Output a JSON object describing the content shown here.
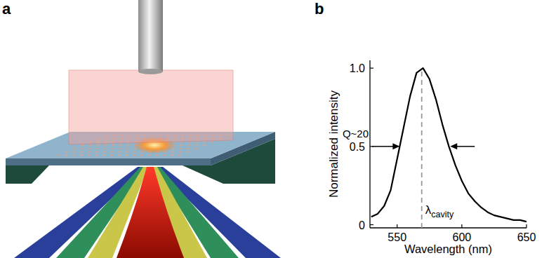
{
  "panel_labels": [
    "a",
    "b"
  ],
  "chart_data": {
    "type": "line",
    "x": [
      530,
      535,
      540,
      545,
      550,
      555,
      560,
      565,
      570,
      575,
      580,
      585,
      590,
      595,
      600,
      605,
      610,
      615,
      620,
      625,
      630,
      635,
      640,
      645,
      650
    ],
    "values": [
      0.05,
      0.07,
      0.12,
      0.22,
      0.42,
      0.62,
      0.82,
      0.97,
      1.0,
      0.93,
      0.8,
      0.64,
      0.5,
      0.38,
      0.28,
      0.2,
      0.15,
      0.11,
      0.08,
      0.06,
      0.05,
      0.04,
      0.03,
      0.03,
      0.02
    ],
    "color": "#000000",
    "line_style": "solid",
    "xlim": [
      529,
      650
    ],
    "ylim": [
      -0.02,
      1.05
    ],
    "xticks": [
      550,
      600,
      650
    ],
    "yticks": [
      0,
      0.5,
      {
        "value": 1,
        "label": "1.0"
      }
    ],
    "x_label": "Wavelength (nm)",
    "y_label": "Normalized intensity",
    "annotations": [
      {
        "text": "Q~20",
        "x": [
          552,
          591
        ],
        "y": 0.5
      },
      {
        "text": "λ",
        "subscript": "cavity",
        "x": 569,
        "line_style": "dashed",
        "color": "#999999"
      }
    ]
  }
}
